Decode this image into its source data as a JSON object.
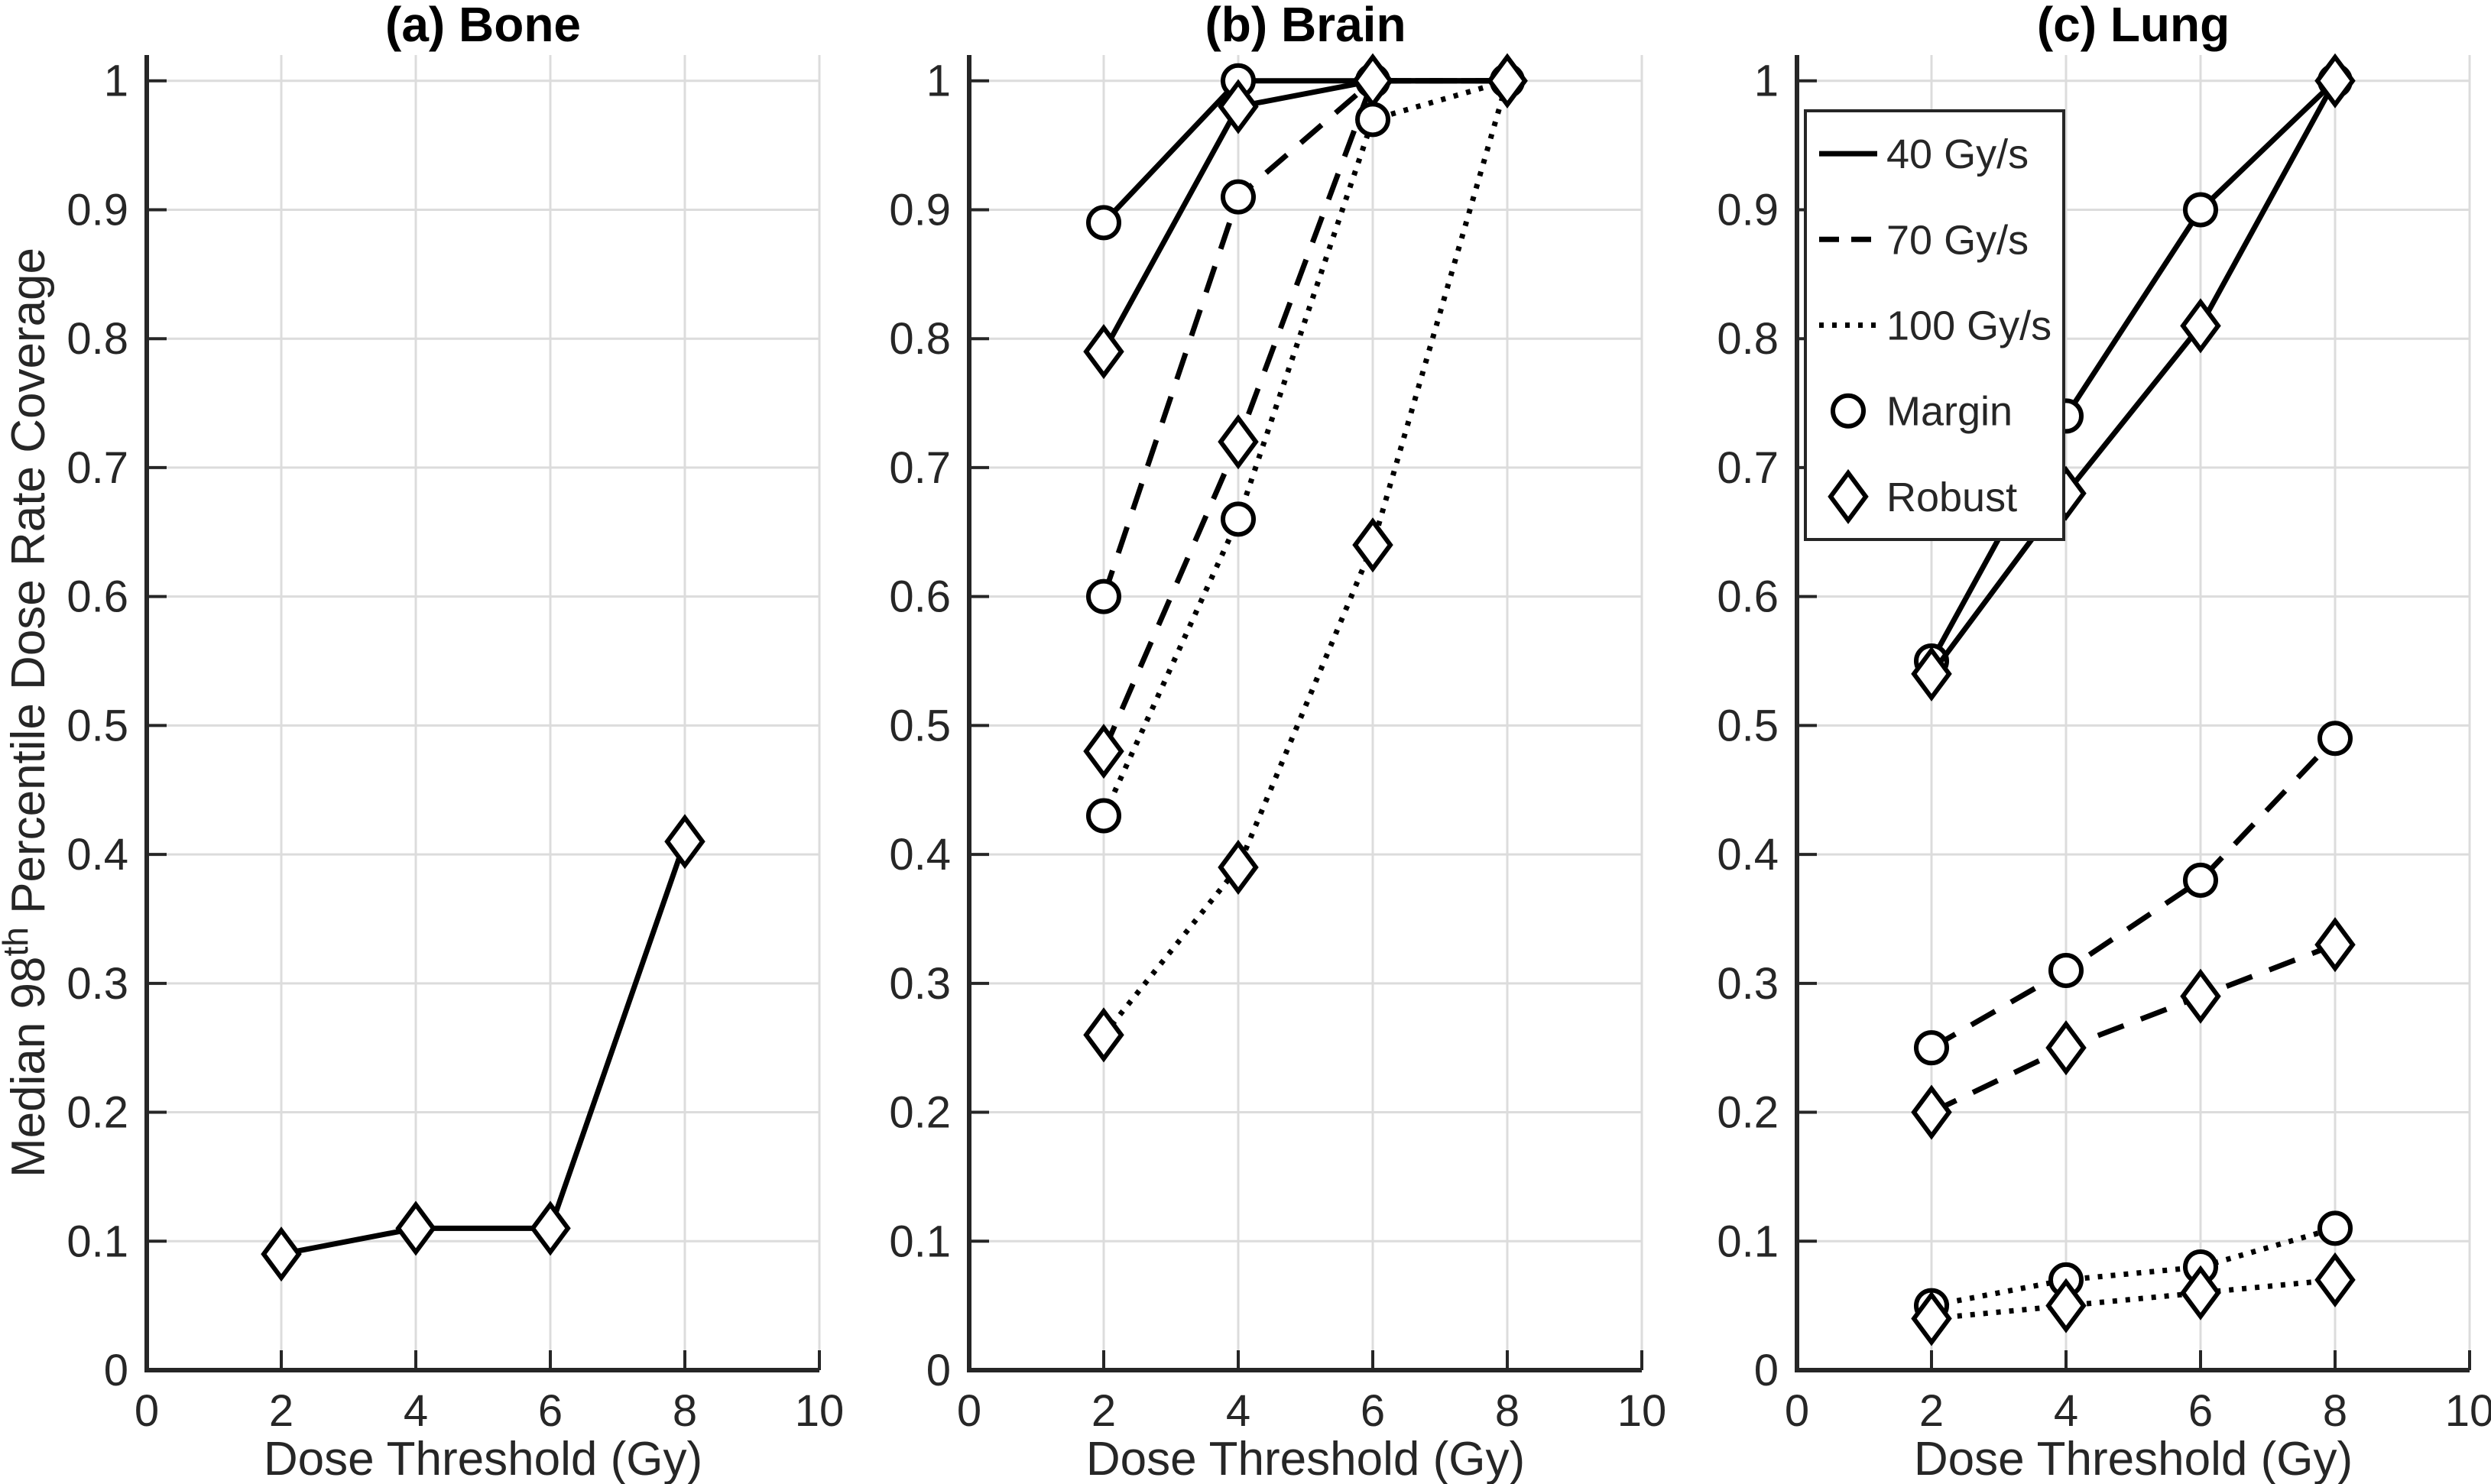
{
  "figure": {
    "xlabel": "Dose Threshold (Gy)",
    "ylabel": {
      "full": "Median 98th Percentile Dose Rate Coverage",
      "base": "Median 98",
      "superscript": "th",
      "rest": " Percentile Dose Rate Coverage"
    },
    "colors": {
      "background": "#ffffff",
      "axis": "#262626",
      "grid": "#dcdcdc",
      "line": "#000000",
      "marker_fill": "#ffffff",
      "tick_text": "#262626",
      "title_text": "#000000"
    }
  },
  "legend": {
    "position": "northwest-lung-panel",
    "entries": [
      {
        "label": "40 Gy/s",
        "line_style": "solid"
      },
      {
        "label": "70 Gy/s",
        "line_style": "dashed"
      },
      {
        "label": "100 Gy/s",
        "line_style": "dotted"
      },
      {
        "label": "Margin",
        "marker": "circle"
      },
      {
        "label": "Robust",
        "marker": "diamond"
      }
    ]
  },
  "chart_data": [
    {
      "type": "line",
      "title": "(a) Bone",
      "xlabel": "Dose Threshold (Gy)",
      "ylabel": "Median 98th Percentile Dose Rate Coverage",
      "x": [
        2,
        4,
        6,
        8
      ],
      "xlim": [
        0,
        10
      ],
      "ylim": [
        0,
        1.02
      ],
      "grid": true,
      "xticks": [
        0,
        2,
        4,
        6,
        8,
        10
      ],
      "xtick_labels": [
        "0",
        "2",
        "4",
        "6",
        "8",
        "10"
      ],
      "yticks": [
        0,
        0.1,
        0.2,
        0.3,
        0.4,
        0.5,
        0.6,
        0.7,
        0.8,
        0.9,
        1
      ],
      "ytick_labels": [
        "0",
        "0.1",
        "0.2",
        "0.3",
        "0.4",
        "0.5",
        "0.6",
        "0.7",
        "0.8",
        "0.9",
        "1"
      ],
      "series": [
        {
          "name": "40 Gy/s Robust",
          "dose_rate": "40 Gy/s",
          "plan": "Robust",
          "line_style": "solid",
          "marker": "diamond",
          "values": [
            0.09,
            0.11,
            0.11,
            0.41
          ]
        }
      ]
    },
    {
      "type": "line",
      "title": "(b) Brain",
      "xlabel": "Dose Threshold (Gy)",
      "ylabel": "Median 98th Percentile Dose Rate Coverage",
      "x": [
        2,
        4,
        6,
        8
      ],
      "xlim": [
        0,
        10
      ],
      "ylim": [
        0,
        1.02
      ],
      "grid": true,
      "xticks": [
        0,
        2,
        4,
        6,
        8,
        10
      ],
      "xtick_labels": [
        "0",
        "2",
        "4",
        "6",
        "8",
        "10"
      ],
      "yticks": [
        0,
        0.1,
        0.2,
        0.3,
        0.4,
        0.5,
        0.6,
        0.7,
        0.8,
        0.9,
        1
      ],
      "ytick_labels": [
        "0",
        "0.1",
        "0.2",
        "0.3",
        "0.4",
        "0.5",
        "0.6",
        "0.7",
        "0.8",
        "0.9",
        "1"
      ],
      "series": [
        {
          "name": "40 Gy/s Margin",
          "dose_rate": "40 Gy/s",
          "plan": "Margin",
          "line_style": "solid",
          "marker": "circle",
          "values": [
            0.89,
            1.0,
            1.0,
            1.0
          ]
        },
        {
          "name": "40 Gy/s Robust",
          "dose_rate": "40 Gy/s",
          "plan": "Robust",
          "line_style": "solid",
          "marker": "diamond",
          "values": [
            0.79,
            0.98,
            1.0,
            1.0
          ]
        },
        {
          "name": "70 Gy/s Margin",
          "dose_rate": "70 Gy/s",
          "plan": "Margin",
          "line_style": "dashed",
          "marker": "circle",
          "values": [
            0.6,
            0.91,
            1.0,
            1.0
          ]
        },
        {
          "name": "70 Gy/s Robust",
          "dose_rate": "70 Gy/s",
          "plan": "Robust",
          "line_style": "dashed",
          "marker": "diamond",
          "values": [
            0.48,
            0.72,
            1.0,
            1.0
          ]
        },
        {
          "name": "100 Gy/s Margin",
          "dose_rate": "100 Gy/s",
          "plan": "Margin",
          "line_style": "dotted",
          "marker": "circle",
          "values": [
            0.43,
            0.66,
            0.97,
            1.0
          ]
        },
        {
          "name": "100 Gy/s Robust",
          "dose_rate": "100 Gy/s",
          "plan": "Robust",
          "line_style": "dotted",
          "marker": "diamond",
          "values": [
            0.26,
            0.39,
            0.64,
            1.0
          ]
        }
      ]
    },
    {
      "type": "line",
      "title": "(c) Lung",
      "xlabel": "Dose Threshold (Gy)",
      "ylabel": "Median 98th Percentile Dose Rate Coverage",
      "x": [
        2,
        4,
        6,
        8
      ],
      "xlim": [
        0,
        10
      ],
      "ylim": [
        0,
        1.02
      ],
      "grid": true,
      "has_legend": true,
      "xticks": [
        0,
        2,
        4,
        6,
        8,
        10
      ],
      "xtick_labels": [
        "0",
        "2",
        "4",
        "6",
        "8",
        "10"
      ],
      "yticks": [
        0,
        0.1,
        0.2,
        0.3,
        0.4,
        0.5,
        0.6,
        0.7,
        0.8,
        0.9,
        1
      ],
      "ytick_labels": [
        "0",
        "0.1",
        "0.2",
        "0.3",
        "0.4",
        "0.5",
        "0.6",
        "0.7",
        "0.8",
        "0.9",
        "1"
      ],
      "series": [
        {
          "name": "40 Gy/s Margin",
          "dose_rate": "40 Gy/s",
          "plan": "Margin",
          "line_style": "solid",
          "marker": "circle",
          "values": [
            0.55,
            0.74,
            0.9,
            1.0
          ]
        },
        {
          "name": "40 Gy/s Robust",
          "dose_rate": "40 Gy/s",
          "plan": "Robust",
          "line_style": "solid",
          "marker": "diamond",
          "values": [
            0.54,
            0.68,
            0.81,
            1.0
          ]
        },
        {
          "name": "70 Gy/s Margin",
          "dose_rate": "70 Gy/s",
          "plan": "Margin",
          "line_style": "dashed",
          "marker": "circle",
          "values": [
            0.25,
            0.31,
            0.38,
            0.49
          ]
        },
        {
          "name": "70 Gy/s Robust",
          "dose_rate": "70 Gy/s",
          "plan": "Robust",
          "line_style": "dashed",
          "marker": "diamond",
          "values": [
            0.2,
            0.25,
            0.29,
            0.33
          ]
        },
        {
          "name": "100 Gy/s Margin",
          "dose_rate": "100 Gy/s",
          "plan": "Margin",
          "line_style": "dotted",
          "marker": "circle",
          "values": [
            0.05,
            0.07,
            0.08,
            0.11
          ]
        },
        {
          "name": "100 Gy/s Robust",
          "dose_rate": "100 Gy/s",
          "plan": "Robust",
          "line_style": "dotted",
          "marker": "diamond",
          "values": [
            0.04,
            0.05,
            0.06,
            0.07
          ]
        }
      ]
    }
  ]
}
